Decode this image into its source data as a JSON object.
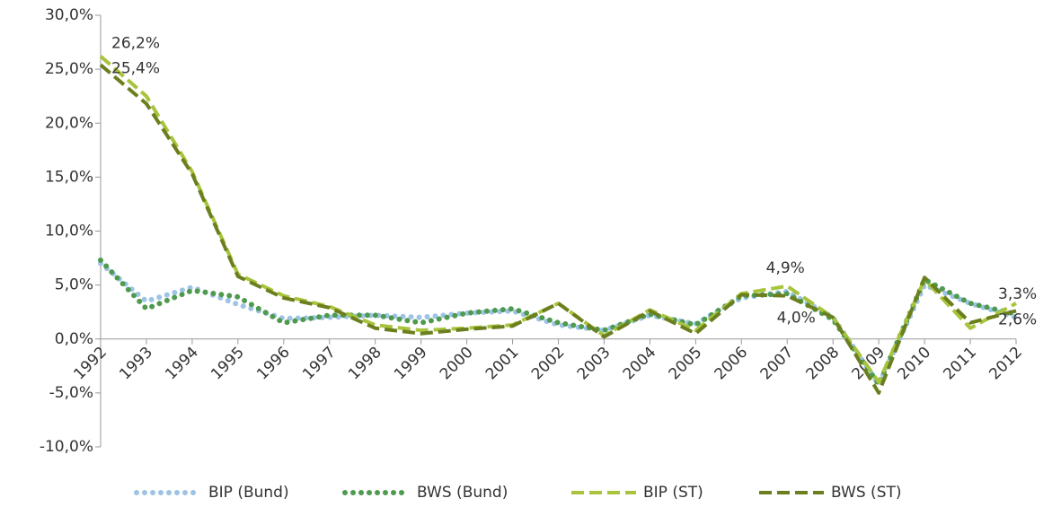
{
  "chart_data": {
    "type": "line",
    "categories": [
      "1992",
      "1993",
      "1994",
      "1995",
      "1996",
      "1997",
      "1998",
      "1999",
      "2000",
      "2001",
      "2002",
      "2003",
      "2004",
      "2005",
      "2006",
      "2007",
      "2008",
      "2009",
      "2010",
      "2011",
      "2012"
    ],
    "ylim": [
      -10,
      30
    ],
    "yticks": [
      {
        "value": -10,
        "label": "-10,0%"
      },
      {
        "value": -5,
        "label": "-5,0%"
      },
      {
        "value": 0,
        "label": "0,0%"
      },
      {
        "value": 5,
        "label": "5,0%"
      },
      {
        "value": 10,
        "label": "10,0%"
      },
      {
        "value": 15,
        "label": "15,0%"
      },
      {
        "value": 20,
        "label": "20,0%"
      },
      {
        "value": 25,
        "label": "25,0%"
      },
      {
        "value": 30,
        "label": "30,0%"
      }
    ],
    "series": [
      {
        "name": "BIP (Bund)",
        "color": "#9dc3e6",
        "style": "dotted",
        "values": [
          7.0,
          3.5,
          4.8,
          3.2,
          1.9,
          2.0,
          2.2,
          2.0,
          2.4,
          2.6,
          1.3,
          0.8,
          2.2,
          1.4,
          3.8,
          4.4,
          2.0,
          -4.2,
          5.0,
          3.3,
          2.0
        ]
      },
      {
        "name": "BWS (Bund)",
        "color": "#4e9a4e",
        "style": "dotted",
        "values": [
          7.3,
          2.8,
          4.5,
          3.9,
          1.5,
          2.2,
          2.2,
          1.5,
          2.4,
          2.8,
          1.5,
          0.8,
          2.3,
          1.3,
          4.0,
          4.2,
          1.8,
          -4.2,
          5.5,
          3.3,
          2.3
        ]
      },
      {
        "name": "BIP (ST)",
        "color": "#a8c43c",
        "style": "dashed",
        "values": [
          26.2,
          22.5,
          15.5,
          6.0,
          4.0,
          3.0,
          1.3,
          0.8,
          1.0,
          1.3,
          3.3,
          0.3,
          2.7,
          0.8,
          4.2,
          4.9,
          2.0,
          -4.0,
          5.5,
          1.0,
          3.3
        ],
        "value_labels": [
          "26,2%",
          null,
          null,
          null,
          null,
          null,
          null,
          null,
          null,
          null,
          null,
          null,
          null,
          null,
          null,
          "4,9%",
          null,
          null,
          null,
          null,
          "3,3%"
        ]
      },
      {
        "name": "BWS (ST)",
        "color": "#6b7f1f",
        "style": "dashed",
        "values": [
          25.4,
          21.8,
          15.3,
          5.8,
          3.8,
          2.9,
          1.0,
          0.5,
          0.9,
          1.2,
          3.3,
          0.2,
          2.6,
          0.5,
          4.1,
          4.0,
          2.0,
          -5.0,
          5.7,
          1.5,
          2.6
        ],
        "value_labels": [
          "25,4%",
          null,
          null,
          null,
          null,
          null,
          null,
          null,
          null,
          null,
          null,
          null,
          null,
          null,
          null,
          "4,0%",
          null,
          null,
          null,
          null,
          "2,6%"
        ]
      }
    ]
  }
}
